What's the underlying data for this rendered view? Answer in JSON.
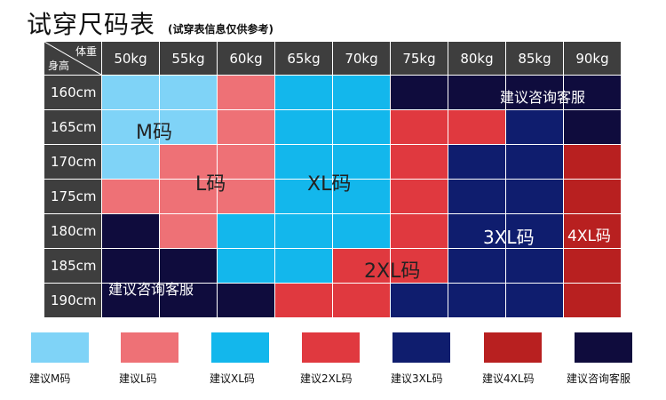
{
  "title": "试穿尺码表",
  "subtitle": "(试穿表信息仅供参考)",
  "header": {
    "corner_weight": "体重",
    "corner_height": "身高",
    "weights": [
      "50kg",
      "55kg",
      "60kg",
      "65kg",
      "70kg",
      "75kg",
      "80kg",
      "85kg",
      "90kg"
    ],
    "heights": [
      "160cm",
      "165cm",
      "170cm",
      "175cm",
      "180cm",
      "185cm",
      "190cm"
    ]
  },
  "colors": {
    "header_bg": "#3e3e3e",
    "M": "#7fd3f7",
    "L": "#ee7176",
    "XL": "#13b7ec",
    "2XL": "#e0393f",
    "3XL": "#0f1d6e",
    "4XL": "#b82020",
    "consult": "#0f0c3d"
  },
  "grid": [
    [
      "M",
      "M",
      "L",
      "XL",
      "XL",
      "consult",
      "consult",
      "consult",
      "consult"
    ],
    [
      "M",
      "M",
      "L",
      "XL",
      "XL",
      "2XL",
      "2XL",
      "3XL",
      "consult"
    ],
    [
      "M",
      "L",
      "L",
      "XL",
      "XL",
      "2XL",
      "3XL",
      "3XL",
      "4XL"
    ],
    [
      "L",
      "L",
      "L",
      "XL",
      "XL",
      "2XL",
      "3XL",
      "3XL",
      "4XL"
    ],
    [
      "consult",
      "L",
      "XL",
      "XL",
      "XL",
      "2XL",
      "3XL",
      "3XL",
      "4XL"
    ],
    [
      "consult",
      "consult",
      "XL",
      "XL",
      "2XL",
      "2XL",
      "3XL",
      "3XL",
      "4XL"
    ],
    [
      "consult",
      "consult",
      "consult",
      "2XL",
      "2XL",
      "3XL",
      "3XL",
      "3XL",
      "4XL"
    ]
  ],
  "region_labels": {
    "M": "M码",
    "L": "L码",
    "XL": "XL码",
    "2XL": "2XL码",
    "3XL": "3XL码",
    "4XL": "4XL码",
    "consult_top": "建议咨询客服",
    "consult_bottom": "建议咨询客服"
  },
  "legend": [
    {
      "key": "M",
      "label": "建议M码"
    },
    {
      "key": "L",
      "label": "建议L码"
    },
    {
      "key": "XL",
      "label": "建议XL码"
    },
    {
      "key": "2XL",
      "label": "建议2XL码"
    },
    {
      "key": "3XL",
      "label": "建议3XL码"
    },
    {
      "key": "4XL",
      "label": "建议4XL码"
    },
    {
      "key": "consult",
      "label": "建议咨询客服"
    }
  ]
}
